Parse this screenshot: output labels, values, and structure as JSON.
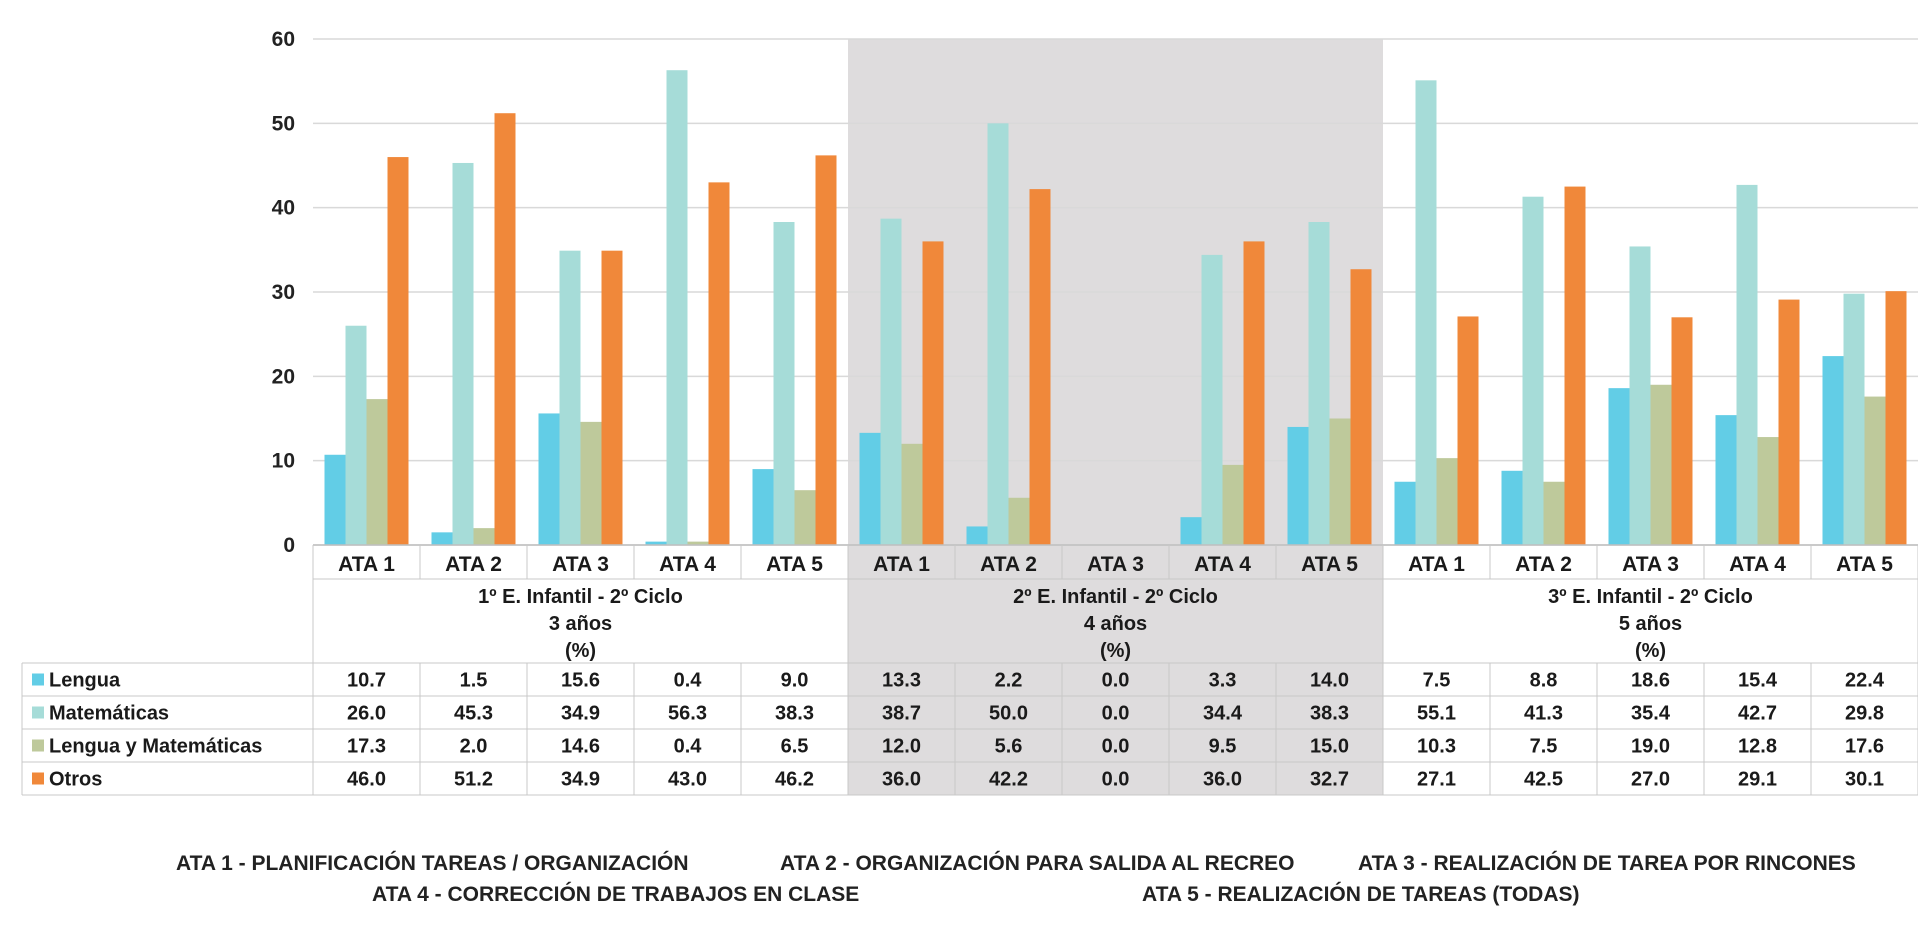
{
  "chart_data": {
    "type": "bar",
    "ylim": [
      0,
      60
    ],
    "yticks": [
      0,
      10,
      20,
      30,
      40,
      50,
      60
    ],
    "grid": true,
    "categories": [
      "ATA 1",
      "ATA 2",
      "ATA 3",
      "ATA 4",
      "ATA 5",
      "ATA 1",
      "ATA 2",
      "ATA 3",
      "ATA 4",
      "ATA 5",
      "ATA 1",
      "ATA 2",
      "ATA 3",
      "ATA 4",
      "ATA 5"
    ],
    "groups": [
      {
        "lines": [
          "1º E. Infantil -  2º Ciclo",
          "3 años",
          "(%)"
        ],
        "shaded": false
      },
      {
        "lines": [
          "2º E. Infantil -  2º Ciclo",
          "4 años",
          "(%)"
        ],
        "shaded": true
      },
      {
        "lines": [
          "3º E. Infantil -  2º Ciclo",
          "5 años",
          "(%)"
        ],
        "shaded": false
      }
    ],
    "series": [
      {
        "name": "Lengua",
        "color": "#62cde6",
        "values": [
          10.7,
          1.5,
          15.6,
          0.4,
          9.0,
          13.3,
          2.2,
          0.0,
          3.3,
          14.0,
          7.5,
          8.8,
          18.6,
          15.4,
          22.4
        ]
      },
      {
        "name": "Matemáticas",
        "color": "#a6dcd8",
        "values": [
          26.0,
          45.3,
          34.9,
          56.3,
          38.3,
          38.7,
          50.0,
          0.0,
          34.4,
          38.3,
          55.1,
          41.3,
          35.4,
          42.7,
          29.8
        ]
      },
      {
        "name": "Lengua y Matemáticas",
        "color": "#bec99b",
        "values": [
          17.3,
          2.0,
          14.6,
          0.4,
          6.5,
          12.0,
          5.6,
          0.0,
          9.5,
          15.0,
          10.3,
          7.5,
          19.0,
          12.8,
          17.6
        ]
      },
      {
        "name": "Otros",
        "color": "#f0883a",
        "values": [
          46.0,
          51.2,
          34.9,
          43.0,
          46.2,
          36.0,
          42.2,
          0.0,
          36.0,
          32.7,
          27.1,
          42.5,
          27.0,
          29.1,
          30.1
        ]
      }
    ],
    "shade_color": "#dedcdd",
    "grid_color": "#d9d9d9"
  },
  "notes": {
    "ata1": "ATA 1 - PLANIFICACIÓN TAREAS / ORGANIZACIÓN",
    "ata2": "ATA 2 - ORGANIZACIÓN PARA SALIDA AL RECREO",
    "ata3": "ATA 3 - REALIZACIÓN DE TAREA POR RINCONES",
    "ata4": "ATA 4 - CORRECCIÓN DE TRABAJOS EN CLASE",
    "ata5": "ATA 5 - REALIZACIÓN DE TAREAS (TODAS)"
  }
}
